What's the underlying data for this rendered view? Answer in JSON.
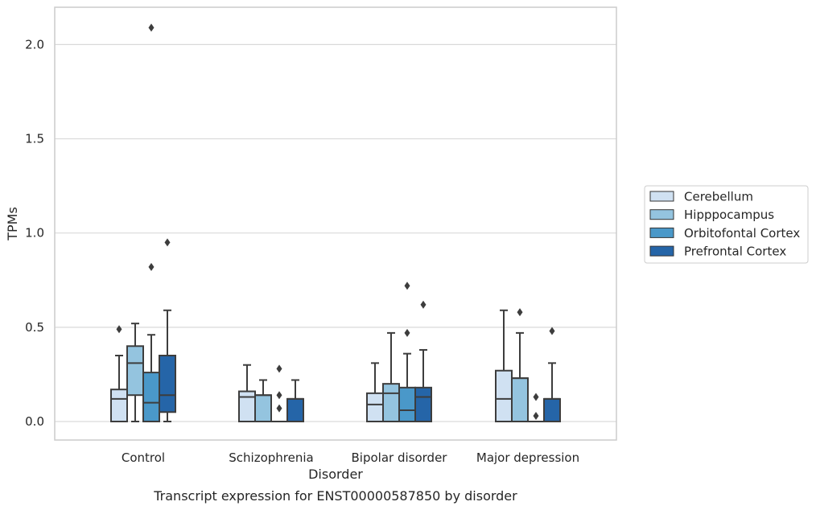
{
  "chart_data": {
    "type": "boxplot",
    "caption": "Transcript expression for ENST00000587850 by disorder",
    "xlabel": "Disorder",
    "ylabel": "TPMs",
    "ylim": [
      -0.1,
      2.2
    ],
    "yticks": [
      0.0,
      0.5,
      1.0,
      1.5,
      2.0
    ],
    "ytick_labels": [
      "0.0",
      "0.5",
      "1.0",
      "1.5",
      "2.0"
    ],
    "grid": "horizontal",
    "legend_position": "right",
    "categories": [
      "Control",
      "Schizophrenia",
      "Bipolar disorder",
      "Major depression"
    ],
    "series": [
      {
        "name": "Cerebellum",
        "color": "#d0e1f2",
        "boxes": [
          {
            "q1": 0.0,
            "median": 0.12,
            "q3": 0.17,
            "whisker_low": 0.0,
            "whisker_high": 0.35,
            "outliers": [
              0.49
            ]
          },
          {
            "q1": 0.0,
            "median": 0.13,
            "q3": 0.16,
            "whisker_low": 0.0,
            "whisker_high": 0.3,
            "outliers": []
          },
          {
            "q1": 0.0,
            "median": 0.09,
            "q3": 0.15,
            "whisker_low": 0.0,
            "whisker_high": 0.31,
            "outliers": []
          },
          {
            "q1": 0.0,
            "median": 0.12,
            "q3": 0.27,
            "whisker_low": 0.0,
            "whisker_high": 0.59,
            "outliers": []
          }
        ]
      },
      {
        "name": "Hipppocampus",
        "color": "#94c4df",
        "boxes": [
          {
            "q1": 0.14,
            "median": 0.31,
            "q3": 0.4,
            "whisker_low": 0.0,
            "whisker_high": 0.52,
            "outliers": []
          },
          {
            "q1": 0.0,
            "median": 0.14,
            "q3": 0.14,
            "whisker_low": 0.0,
            "whisker_high": 0.22,
            "outliers": []
          },
          {
            "q1": 0.0,
            "median": 0.15,
            "q3": 0.2,
            "whisker_low": 0.0,
            "whisker_high": 0.47,
            "outliers": []
          },
          {
            "q1": 0.0,
            "median": 0.23,
            "q3": 0.23,
            "whisker_low": 0.0,
            "whisker_high": 0.47,
            "outliers": [
              0.58
            ]
          }
        ]
      },
      {
        "name": "Orbitofontal Cortex",
        "color": "#4a98c9",
        "boxes": [
          {
            "q1": 0.0,
            "median": 0.1,
            "q3": 0.26,
            "whisker_low": 0.0,
            "whisker_high": 0.46,
            "outliers": [
              0.82,
              2.09
            ]
          },
          {
            "q1": 0.0,
            "median": 0.0,
            "q3": 0.0,
            "whisker_low": 0.0,
            "whisker_high": 0.0,
            "outliers": [
              0.07,
              0.14,
              0.28
            ]
          },
          {
            "q1": 0.0,
            "median": 0.06,
            "q3": 0.18,
            "whisker_low": 0.0,
            "whisker_high": 0.36,
            "outliers": [
              0.47,
              0.72
            ]
          },
          {
            "q1": 0.0,
            "median": 0.0,
            "q3": 0.0,
            "whisker_low": 0.0,
            "whisker_high": 0.0,
            "outliers": [
              0.03,
              0.13
            ]
          }
        ]
      },
      {
        "name": "Prefrontal Cortex",
        "color": "#2565a8",
        "boxes": [
          {
            "q1": 0.05,
            "median": 0.14,
            "q3": 0.35,
            "whisker_low": 0.0,
            "whisker_high": 0.59,
            "outliers": [
              0.95
            ]
          },
          {
            "q1": 0.0,
            "median": 0.12,
            "q3": 0.12,
            "whisker_low": 0.0,
            "whisker_high": 0.22,
            "outliers": []
          },
          {
            "q1": 0.0,
            "median": 0.13,
            "q3": 0.18,
            "whisker_low": 0.0,
            "whisker_high": 0.38,
            "outliers": [
              0.62
            ]
          },
          {
            "q1": 0.0,
            "median": 0.12,
            "q3": 0.12,
            "whisker_low": 0.0,
            "whisker_high": 0.31,
            "outliers": [
              0.48
            ]
          }
        ]
      }
    ]
  }
}
